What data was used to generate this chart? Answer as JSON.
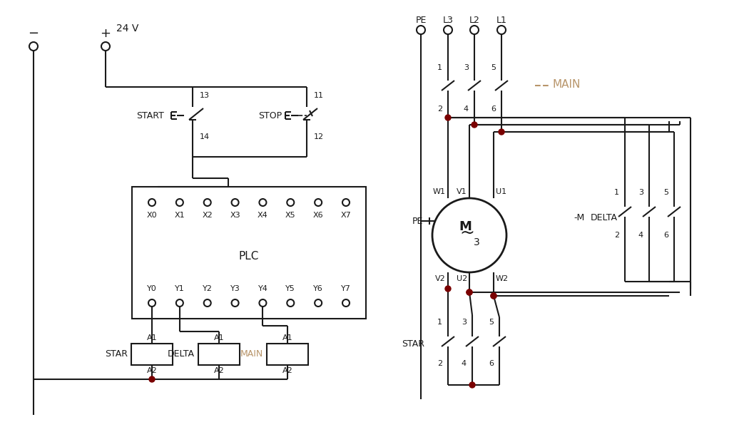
{
  "bg_color": "#ffffff",
  "line_color": "#1a1a1a",
  "dot_color": "#7a0000",
  "main_color": "#b8956a",
  "figsize": [
    10.57,
    6.13
  ],
  "dpi": 100,
  "x_labels": [
    "X0",
    "X1",
    "X2",
    "X3",
    "X4",
    "X5",
    "X6",
    "X7"
  ],
  "y_labels": [
    "Y0",
    "Y1",
    "Y2",
    "Y3",
    "Y4",
    "Y5",
    "Y6",
    "Y7"
  ]
}
